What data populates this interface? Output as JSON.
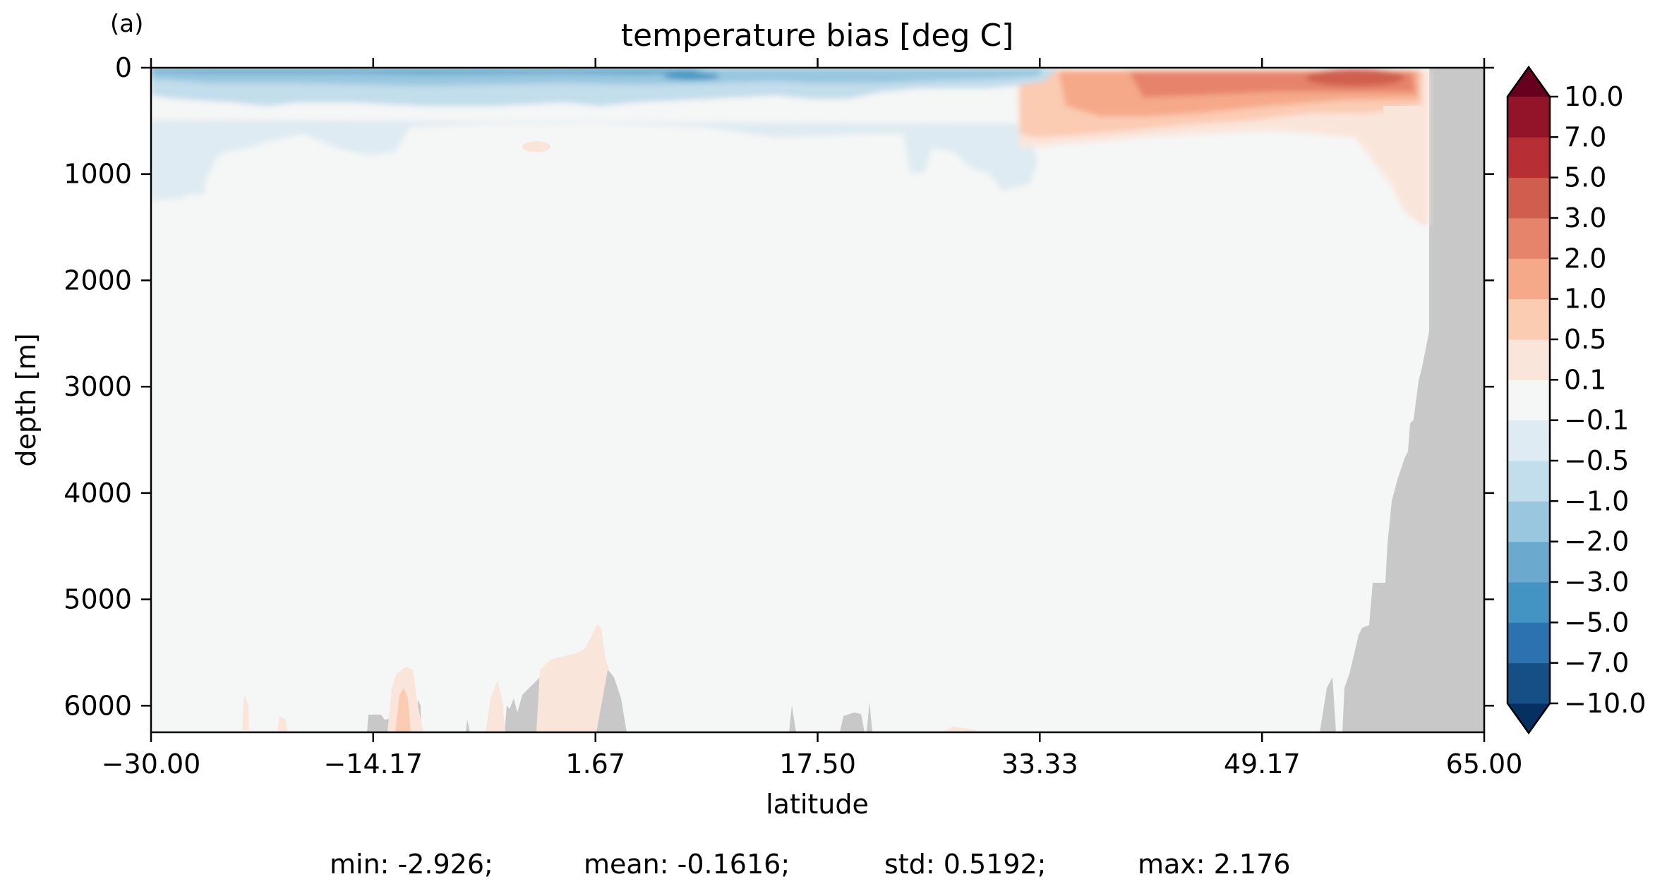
{
  "chart_data": {
    "type": "heatmap",
    "panel_label": "(a)",
    "title": "temperature bias [deg C]",
    "xlabel": "latitude",
    "ylabel": "depth [m]",
    "xlim": [
      -30.0,
      65.0
    ],
    "ylim": [
      6250,
      0
    ],
    "y_inverted": true,
    "xticks": [
      "−30.00",
      "−14.17",
      "1.67",
      "17.50",
      "33.33",
      "49.17",
      "65.00"
    ],
    "xtick_values": [
      -30.0,
      -14.17,
      1.67,
      17.5,
      33.33,
      49.17,
      65.0
    ],
    "yticks": [
      "0",
      "1000",
      "2000",
      "3000",
      "4000",
      "5000",
      "6000"
    ],
    "ytick_values": [
      0,
      1000,
      2000,
      3000,
      4000,
      5000,
      6000
    ],
    "colorbar": {
      "levels": [
        "−10.0",
        "−7.0",
        "−5.0",
        "−3.0",
        "−2.0",
        "−1.0",
        "−0.5",
        "−0.1",
        "0.1",
        "0.5",
        "1.0",
        "2.0",
        "3.0",
        "5.0",
        "7.0",
        "10.0"
      ],
      "colors": [
        "#053061",
        "#164f86",
        "#2c71b0",
        "#4393c3",
        "#6ba9ce",
        "#99c7e0",
        "#c2ddeb",
        "#deebf2",
        "#f5f6f6",
        "#fae5da",
        "#fbcbb2",
        "#f5a989",
        "#e6836b",
        "#d05e4e",
        "#b82e35",
        "#931328",
        "#67001f"
      ],
      "extend": "both",
      "cmap": "RdBu_r"
    },
    "land_color": "#c8c8c8",
    "background_color": "#f5f6f6",
    "stats": [
      {
        "label": "min: -2.926;"
      },
      {
        "label": "mean: -0.1616;"
      },
      {
        "label": "std: 0.5192;"
      },
      {
        "label": "max: 2.176"
      }
    ]
  }
}
